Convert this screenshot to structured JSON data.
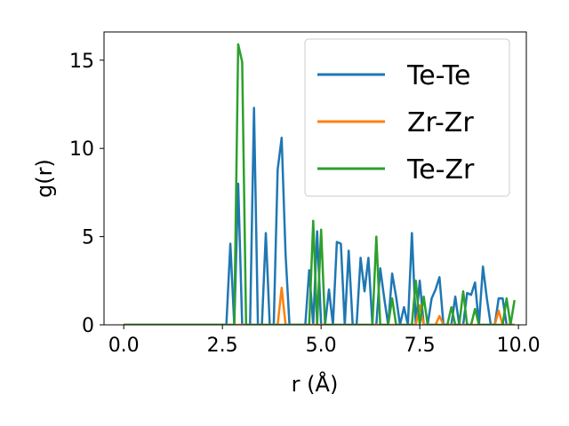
{
  "chart_data": {
    "type": "line",
    "xlabel": "r (Å)",
    "ylabel": "g(r)",
    "xlim": [
      -0.5,
      10.2
    ],
    "ylim": [
      0,
      16.6
    ],
    "xticks": [
      0.0,
      2.5,
      5.0,
      7.5,
      10.0
    ],
    "xtick_labels": [
      "0.0",
      "2.5",
      "5.0",
      "7.5",
      "10.0"
    ],
    "yticks": [
      0,
      5,
      10,
      15
    ],
    "ytick_labels": [
      "0",
      "5",
      "10",
      "15"
    ],
    "grid": false,
    "legend_position": "top-right",
    "series": [
      {
        "name": "Te-Te",
        "color": "#1f77b4",
        "x": [
          0.0,
          2.6,
          2.7,
          2.8,
          2.9,
          3.0,
          3.1,
          3.2,
          3.3,
          3.4,
          3.5,
          3.6,
          3.7,
          3.8,
          3.9,
          4.0,
          4.1,
          4.2,
          4.3,
          4.4,
          4.5,
          4.6,
          4.7,
          4.8,
          4.9,
          5.0,
          5.1,
          5.2,
          5.3,
          5.4,
          5.5,
          5.6,
          5.7,
          5.8,
          5.9,
          6.0,
          6.1,
          6.2,
          6.3,
          6.4,
          6.5,
          6.6,
          6.7,
          6.8,
          6.9,
          7.0,
          7.1,
          7.2,
          7.3,
          7.4,
          7.5,
          7.6,
          7.7,
          7.8,
          7.9,
          8.0,
          8.1,
          8.2,
          8.3,
          8.4,
          8.5,
          8.6,
          8.7,
          8.8,
          8.9,
          9.0,
          9.1,
          9.2,
          9.3,
          9.4,
          9.5,
          9.6,
          9.7,
          9.8,
          9.9
        ],
        "y": [
          0.0,
          0.0,
          4.6,
          0.0,
          8.0,
          0.0,
          0.0,
          0.0,
          12.3,
          0.0,
          0.0,
          5.2,
          0.0,
          0.0,
          8.8,
          10.6,
          4.0,
          0.0,
          0.0,
          0.0,
          0.0,
          0.0,
          3.1,
          0.0,
          5.3,
          0.0,
          0.0,
          2.0,
          0.0,
          4.7,
          4.6,
          0.0,
          4.2,
          0.0,
          0.0,
          3.8,
          1.9,
          3.8,
          0.0,
          0.0,
          3.2,
          1.5,
          0.0,
          2.9,
          1.6,
          0.0,
          1.0,
          0.0,
          5.2,
          0.0,
          2.5,
          0.0,
          0.0,
          1.5,
          2.0,
          2.7,
          0.0,
          0.0,
          0.0,
          1.6,
          0.0,
          0.0,
          1.8,
          1.7,
          2.4,
          0.0,
          3.3,
          1.5,
          0.0,
          0.0,
          1.5,
          1.5,
          0.0,
          0.0,
          0.0
        ]
      },
      {
        "name": "Zr-Zr",
        "color": "#ff7f0e",
        "x": [
          0.0,
          3.8,
          3.9,
          4.0,
          4.1,
          4.2,
          7.4,
          7.5,
          7.6,
          7.9,
          8.0,
          8.1,
          9.4,
          9.5,
          9.6,
          9.9
        ],
        "y": [
          0.0,
          0.0,
          0.0,
          2.1,
          0.0,
          0.0,
          0.0,
          1.1,
          0.0,
          0.0,
          0.5,
          0.0,
          0.0,
          0.8,
          0.0,
          0.0
        ]
      },
      {
        "name": "Te-Zr",
        "color": "#2ca02c",
        "x": [
          0.0,
          2.8,
          2.9,
          3.0,
          3.1,
          3.2,
          4.7,
          4.8,
          4.9,
          5.0,
          5.1,
          5.2,
          6.2,
          6.3,
          6.4,
          6.5,
          6.6,
          6.7,
          6.8,
          6.9,
          7.0,
          7.1,
          7.2,
          7.3,
          7.4,
          7.5,
          7.6,
          7.7,
          7.8,
          7.9,
          8.0,
          8.1,
          8.2,
          8.3,
          8.4,
          8.5,
          8.6,
          8.7,
          8.8,
          8.9,
          9.0,
          9.1,
          9.2,
          9.3,
          9.4,
          9.5,
          9.6,
          9.7,
          9.8,
          9.9
        ],
        "y": [
          0.0,
          0.0,
          15.9,
          14.9,
          0.0,
          0.0,
          0.0,
          5.9,
          0.0,
          5.4,
          0.0,
          0.0,
          0.0,
          0.0,
          5.0,
          0.0,
          0.0,
          0.0,
          1.5,
          0.0,
          0.0,
          0.0,
          0.0,
          0.0,
          2.5,
          0.0,
          1.6,
          0.0,
          0.0,
          0.0,
          0.0,
          0.0,
          0.0,
          1.0,
          0.0,
          0.0,
          1.9,
          0.0,
          0.0,
          0.9,
          0.0,
          0.0,
          0.0,
          0.0,
          0.0,
          0.0,
          0.0,
          1.5,
          0.0,
          1.4
        ]
      }
    ]
  }
}
